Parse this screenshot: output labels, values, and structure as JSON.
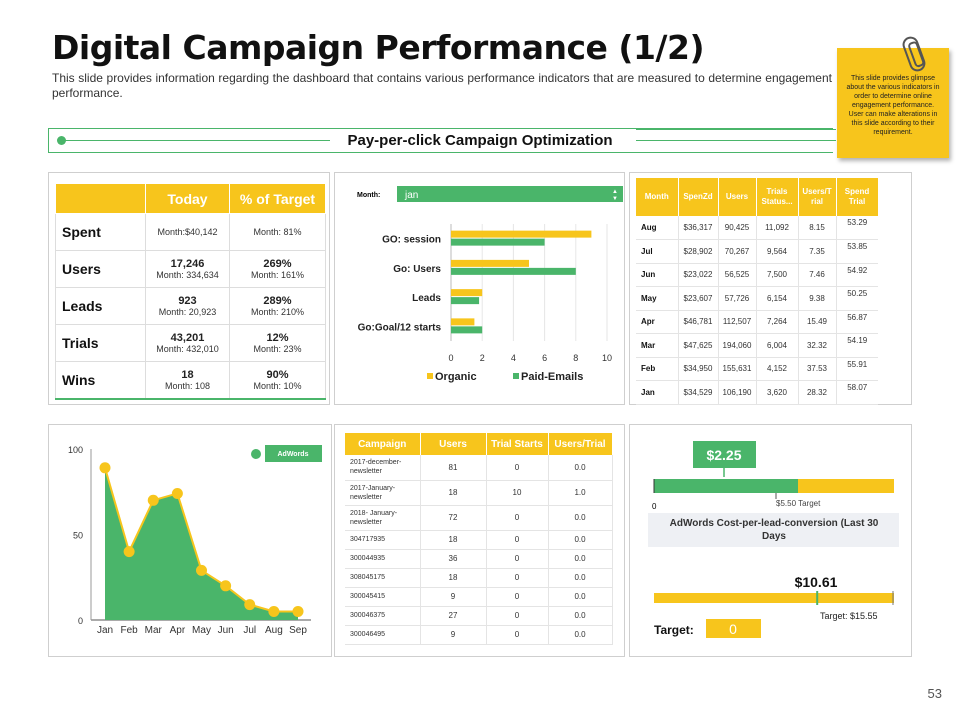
{
  "title": "Digital Campaign Performance (1/2)",
  "subtitle": "This slide provides information regarding the dashboard that contains various performance indicators that are measured to determine engagement performance.",
  "sticky_note": "This slide provides glimpse about the various indicators in order to determine online engagement performance. User can make alterations in this slide according to their requirement.",
  "banner": "Pay-per-click Campaign Optimization",
  "page_number": "53",
  "kpi_table": {
    "headers": [
      "Today",
      "% of Target"
    ],
    "rows": [
      {
        "label": "Spent",
        "today_main": "",
        "today_sub": "Month:$40,142",
        "target_main": "",
        "target_sub": "Month: 81%"
      },
      {
        "label": "Users",
        "today_main": "17,246",
        "today_sub": "Month: 334,634",
        "target_main": "269%",
        "target_sub": "Month: 161%"
      },
      {
        "label": "Leads",
        "today_main": "923",
        "today_sub": "Month: 20,923",
        "target_main": "289%",
        "target_sub": "Month: 210%"
      },
      {
        "label": "Trials",
        "today_main": "43,201",
        "today_sub": "Month: 432,010",
        "target_main": "12%",
        "target_sub": "Month: 23%"
      },
      {
        "label": "Wins",
        "today_main": "18",
        "today_sub": "Month: 108",
        "target_main": "90%",
        "target_sub": "Month: 10%"
      }
    ]
  },
  "month_selector": {
    "label": "Month:",
    "value": "jan"
  },
  "monthly_table": {
    "headers": [
      "Month",
      "SpenZd",
      "Users",
      "Trials Status...",
      "Users/T rial",
      "Spend Trial"
    ],
    "rows": [
      [
        "Aug",
        "$36,317",
        "90,425",
        "11,092",
        "8.15",
        "53.29"
      ],
      [
        "Jul",
        "$28,902",
        "70,267",
        "9,564",
        "7.35",
        "53.85"
      ],
      [
        "Jun",
        "$23,022",
        "56,525",
        "7,500",
        "7.46",
        "54.92"
      ],
      [
        "May",
        "$23,607",
        "57,726",
        "6,154",
        "9.38",
        "50.25"
      ],
      [
        "Apr",
        "$46,781",
        "112,507",
        "7,264",
        "15.49",
        "56.87"
      ],
      [
        "Mar",
        "$47,625",
        "194,060",
        "6,004",
        "32.32",
        "54.19"
      ],
      [
        "Feb",
        "$34,950",
        "155,631",
        "4,152",
        "37.53",
        "55.91"
      ],
      [
        "Jan",
        "$34,529",
        "106,190",
        "3,620",
        "28.32",
        "58.07"
      ]
    ]
  },
  "campaign_table": {
    "headers": [
      "Campaign",
      "Users",
      "Trial Starts",
      "Users/Trial"
    ],
    "rows": [
      [
        "2017-december-newsletter",
        "81",
        "0",
        "0.0"
      ],
      [
        "2017-January-newsletter",
        "18",
        "10",
        "1.0"
      ],
      [
        "2018- January-newsletter",
        "72",
        "0",
        "0.0"
      ],
      [
        "304717935",
        "18",
        "0",
        "0.0"
      ],
      [
        "300044935",
        "36",
        "0",
        "0.0"
      ],
      [
        "308045175",
        "18",
        "0",
        "0.0"
      ],
      [
        "300045415",
        "9",
        "0",
        "0.0"
      ],
      [
        "300046375",
        "27",
        "0",
        "0.0"
      ],
      [
        "300046495",
        "9",
        "0",
        "0.0"
      ]
    ]
  },
  "gauge1": {
    "value_label": "$2.25",
    "zero_label": "0",
    "target_label": "$5.50 Target",
    "caption": "AdWords Cost-per-lead-conversion (Last 30 Days",
    "green_fraction": 0.6,
    "marker_fraction": 0.29,
    "colors": {
      "green": "#4ab56a",
      "yellow": "#f7c51c"
    }
  },
  "gauge2": {
    "value_label": "$10.61",
    "target_label": "Target: $15.55",
    "target_field_label": "Target:",
    "target_field_value": "0",
    "marker_fraction": 0.68
  },
  "chart_data": [
    {
      "type": "bar",
      "orientation": "horizontal",
      "categories": [
        "GO: session",
        "Go: Users",
        "Leads",
        "Go:Goal/12 starts"
      ],
      "series": [
        {
          "name": "Organic",
          "color": "#f7c51c",
          "values": [
            9,
            5,
            2,
            1.5
          ]
        },
        {
          "name": "Paid-Emails",
          "color": "#4ab56a",
          "values": [
            6,
            8,
            1.8,
            2
          ]
        }
      ],
      "xlim": [
        0,
        10
      ],
      "xticks": [
        "0",
        "2",
        "4",
        "6",
        "8",
        "10"
      ],
      "legend": "bottom"
    },
    {
      "type": "area",
      "categories": [
        "Jan",
        "Feb",
        "Mar",
        "Apr",
        "May",
        "Jun",
        "Jul",
        "Aug",
        "Sep"
      ],
      "series": [
        {
          "name": "AdWords",
          "color": "#4ab56a",
          "values": [
            89,
            40,
            70,
            74,
            29,
            20,
            9,
            5,
            5
          ]
        }
      ],
      "ylim": [
        0,
        100
      ],
      "yticks": [
        "0",
        "50",
        "100"
      ],
      "legend": "top-right"
    }
  ]
}
